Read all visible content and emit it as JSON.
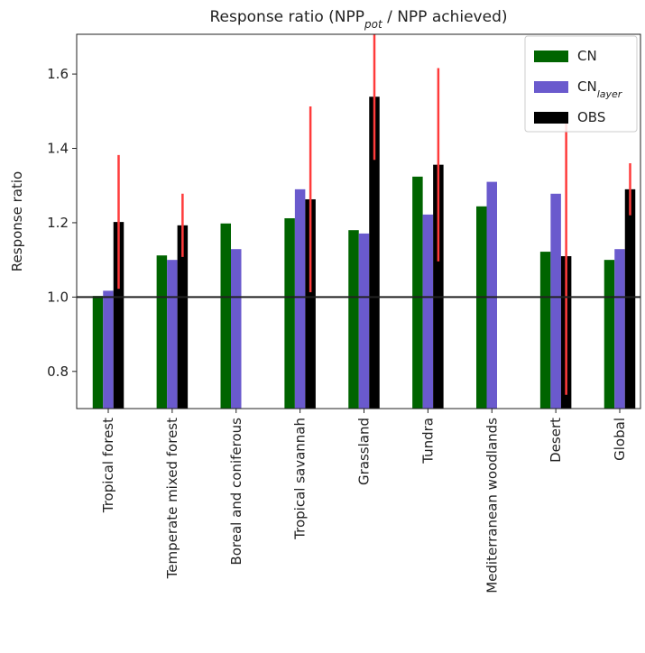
{
  "chart_data": {
    "type": "bar",
    "title": [
      "Response ratio (NPP",
      "pot",
      " / NPP achieved)"
    ],
    "ylabel": "Response ratio",
    "categories": [
      "Tropical forest",
      "Temperate mixed forest",
      "Boreal and coniferous",
      "Tropical savannah",
      "Grassland",
      "Tundra",
      "Mediterranean woodlands",
      "Desert",
      "Global"
    ],
    "series": [
      {
        "name": [
          "CN"
        ],
        "color": "#006400",
        "values": [
          1.003,
          1.112,
          1.198,
          1.212,
          1.18,
          1.324,
          1.244,
          1.122,
          1.1
        ]
      },
      {
        "name": [
          "CN",
          "layer"
        ],
        "color": "#6a5acd",
        "values": [
          1.017,
          1.1,
          1.129,
          1.29,
          1.171,
          1.222,
          1.31,
          1.278,
          1.129
        ]
      },
      {
        "name": [
          "OBS"
        ],
        "color": "#000000",
        "values": [
          1.202,
          1.193,
          null,
          1.263,
          1.539,
          1.356,
          null,
          1.11,
          1.29
        ],
        "errors": [
          0.18,
          0.085,
          null,
          0.25,
          0.17,
          0.26,
          null,
          0.373,
          0.07
        ],
        "error_color": "#ff3b3b"
      }
    ],
    "ylim": [
      0.7,
      1.707
    ],
    "yticks": [
      0.8,
      {
        "value": 1,
        "label": "1.0"
      },
      1.2,
      1.4,
      1.6
    ],
    "hline": 1,
    "legend": "upper right"
  }
}
